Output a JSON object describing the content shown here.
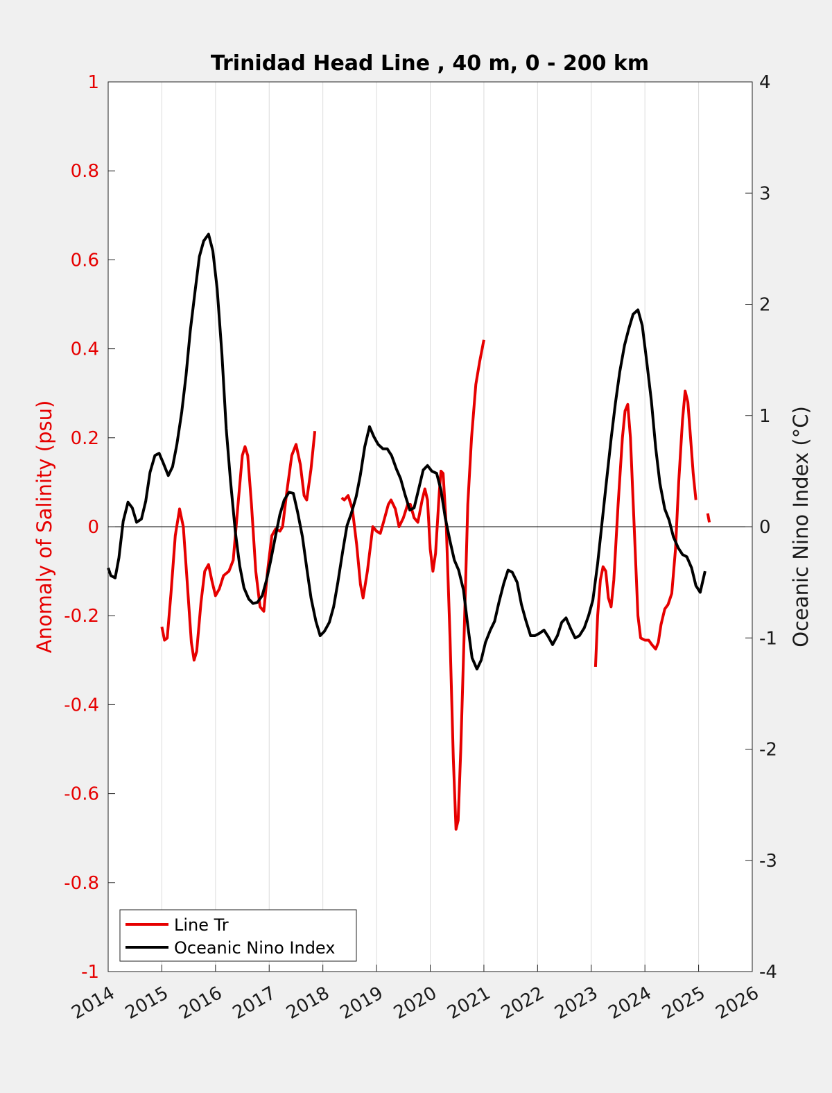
{
  "chart_data": {
    "type": "line",
    "title": "Trinidad Head Line , 40 m, 0 - 200 km",
    "xlabel": "",
    "ylabel_left": "Anomaly of Salinity (psu)",
    "ylabel_right": "Oceanic Nino Index (°C)",
    "xlim": [
      2014,
      2026
    ],
    "ylim_left": [
      -1,
      1
    ],
    "ylim_right": [
      -4,
      4
    ],
    "x_ticks": [
      2014,
      2015,
      2016,
      2017,
      2018,
      2019,
      2020,
      2021,
      2022,
      2023,
      2024,
      2025,
      2026
    ],
    "y_ticks_left": [
      1,
      0.8,
      0.6,
      0.4,
      0.2,
      0,
      -0.2,
      -0.4,
      -0.6,
      -0.8,
      -1
    ],
    "y_tick_labels_left": [
      "1",
      "0.8",
      "0.6",
      "0.4",
      "0.2",
      "0",
      "-0.2",
      "-0.4",
      "-0.6",
      "-0.8",
      "-1"
    ],
    "y_ticks_right": [
      4,
      3,
      2,
      1,
      0,
      -1,
      -2,
      -3,
      -4
    ],
    "y_tick_labels_right": [
      "4",
      "3",
      "2",
      "1",
      "0",
      "-1",
      "-2",
      "-3",
      "-4"
    ],
    "grid": "vertical",
    "zero_line": true,
    "legend_position": "bottom-left",
    "colors": {
      "salinity": "#e60000",
      "oni": "#000000",
      "left_axis": "#e60000",
      "right_axis": "#1a1a1a",
      "grid": "#dcdcdc",
      "background": "#f0f0f0",
      "plot_background": "#ffffff"
    },
    "series": [
      {
        "name": "Line Tr",
        "axis": "left",
        "color": "#e60000",
        "segments": [
          [
            [
              2015.0,
              -0.225
            ],
            [
              2015.05,
              -0.255
            ],
            [
              2015.1,
              -0.25
            ],
            [
              2015.17,
              -0.15
            ],
            [
              2015.25,
              -0.02
            ],
            [
              2015.33,
              0.04
            ],
            [
              2015.4,
              0.0
            ],
            [
              2015.47,
              -0.12
            ],
            [
              2015.55,
              -0.26
            ],
            [
              2015.6,
              -0.3
            ],
            [
              2015.65,
              -0.28
            ],
            [
              2015.73,
              -0.17
            ],
            [
              2015.8,
              -0.1
            ],
            [
              2015.87,
              -0.085
            ],
            [
              2015.93,
              -0.12
            ],
            [
              2016.0,
              -0.155
            ],
            [
              2016.07,
              -0.14
            ],
            [
              2016.15,
              -0.11
            ],
            [
              2016.25,
              -0.1
            ],
            [
              2016.33,
              -0.075
            ],
            [
              2016.42,
              0.05
            ],
            [
              2016.5,
              0.16
            ],
            [
              2016.55,
              0.18
            ],
            [
              2016.6,
              0.16
            ],
            [
              2016.67,
              0.05
            ],
            [
              2016.75,
              -0.1
            ],
            [
              2016.83,
              -0.18
            ],
            [
              2016.9,
              -0.19
            ],
            [
              2016.97,
              -0.1
            ],
            [
              2017.05,
              -0.02
            ],
            [
              2017.12,
              -0.005
            ],
            [
              2017.2,
              -0.01
            ],
            [
              2017.25,
              0.0
            ],
            [
              2017.33,
              0.08
            ],
            [
              2017.42,
              0.16
            ],
            [
              2017.5,
              0.185
            ],
            [
              2017.58,
              0.14
            ],
            [
              2017.65,
              0.07
            ],
            [
              2017.7,
              0.06
            ],
            [
              2017.78,
              0.13
            ],
            [
              2017.85,
              0.215
            ]
          ],
          [
            [
              2018.35,
              0.065
            ],
            [
              2018.4,
              0.06
            ],
            [
              2018.47,
              0.07
            ],
            [
              2018.55,
              0.04
            ],
            [
              2018.63,
              -0.04
            ],
            [
              2018.7,
              -0.13
            ],
            [
              2018.75,
              -0.16
            ],
            [
              2018.83,
              -0.1
            ],
            [
              2018.93,
              0.0
            ],
            [
              2019.0,
              -0.01
            ],
            [
              2019.07,
              -0.015
            ],
            [
              2019.13,
              0.01
            ],
            [
              2019.22,
              0.05
            ],
            [
              2019.27,
              0.06
            ],
            [
              2019.35,
              0.04
            ],
            [
              2019.42,
              0.0
            ],
            [
              2019.5,
              0.02
            ],
            [
              2019.58,
              0.05
            ],
            [
              2019.63,
              0.05
            ],
            [
              2019.7,
              0.02
            ],
            [
              2019.77,
              0.01
            ],
            [
              2019.85,
              0.06
            ],
            [
              2019.9,
              0.085
            ],
            [
              2019.95,
              0.06
            ],
            [
              2020.0,
              -0.05
            ],
            [
              2020.05,
              -0.1
            ],
            [
              2020.1,
              -0.06
            ],
            [
              2020.17,
              0.08
            ],
            [
              2020.2,
              0.125
            ],
            [
              2020.24,
              0.12
            ],
            [
              2020.3,
              0.0
            ],
            [
              2020.37,
              -0.25
            ],
            [
              2020.43,
              -0.52
            ],
            [
              2020.48,
              -0.68
            ],
            [
              2020.52,
              -0.66
            ],
            [
              2020.57,
              -0.5
            ],
            [
              2020.63,
              -0.25
            ],
            [
              2020.7,
              0.05
            ],
            [
              2020.77,
              0.2
            ],
            [
              2020.85,
              0.32
            ],
            [
              2020.92,
              0.37
            ],
            [
              2021.0,
              0.42
            ]
          ],
          [
            [
              2023.08,
              -0.315
            ],
            [
              2023.12,
              -0.2
            ],
            [
              2023.17,
              -0.12
            ],
            [
              2023.22,
              -0.09
            ],
            [
              2023.27,
              -0.1
            ],
            [
              2023.32,
              -0.16
            ],
            [
              2023.37,
              -0.18
            ],
            [
              2023.42,
              -0.12
            ],
            [
              2023.5,
              0.05
            ],
            [
              2023.58,
              0.2
            ],
            [
              2023.63,
              0.26
            ],
            [
              2023.68,
              0.275
            ],
            [
              2023.73,
              0.2
            ],
            [
              2023.8,
              0.0
            ],
            [
              2023.87,
              -0.2
            ],
            [
              2023.92,
              -0.25
            ],
            [
              2024.0,
              -0.255
            ],
            [
              2024.07,
              -0.255
            ],
            [
              2024.13,
              -0.265
            ],
            [
              2024.2,
              -0.275
            ],
            [
              2024.25,
              -0.26
            ],
            [
              2024.3,
              -0.22
            ],
            [
              2024.37,
              -0.185
            ],
            [
              2024.43,
              -0.175
            ],
            [
              2024.5,
              -0.15
            ],
            [
              2024.57,
              -0.05
            ],
            [
              2024.63,
              0.1
            ],
            [
              2024.7,
              0.24
            ],
            [
              2024.75,
              0.305
            ],
            [
              2024.8,
              0.28
            ],
            [
              2024.85,
              0.2
            ],
            [
              2024.9,
              0.12
            ],
            [
              2024.95,
              0.06
            ]
          ],
          [
            [
              2025.17,
              0.03
            ],
            [
              2025.2,
              0.01
            ]
          ]
        ]
      },
      {
        "name": "Oceanic Nino Index",
        "axis": "right",
        "color": "#000000",
        "points": [
          [
            2014.0,
            -0.37
          ],
          [
            2014.05,
            -0.44
          ],
          [
            2014.13,
            -0.46
          ],
          [
            2014.2,
            -0.28
          ],
          [
            2014.28,
            0.05
          ],
          [
            2014.37,
            0.22
          ],
          [
            2014.45,
            0.17
          ],
          [
            2014.53,
            0.04
          ],
          [
            2014.62,
            0.07
          ],
          [
            2014.7,
            0.23
          ],
          [
            2014.78,
            0.49
          ],
          [
            2014.87,
            0.64
          ],
          [
            2014.95,
            0.66
          ],
          [
            2015.03,
            0.57
          ],
          [
            2015.12,
            0.46
          ],
          [
            2015.2,
            0.54
          ],
          [
            2015.28,
            0.74
          ],
          [
            2015.37,
            1.03
          ],
          [
            2015.45,
            1.36
          ],
          [
            2015.53,
            1.76
          ],
          [
            2015.62,
            2.12
          ],
          [
            2015.7,
            2.43
          ],
          [
            2015.78,
            2.57
          ],
          [
            2015.87,
            2.63
          ],
          [
            2015.95,
            2.48
          ],
          [
            2016.03,
            2.14
          ],
          [
            2016.12,
            1.55
          ],
          [
            2016.2,
            0.88
          ],
          [
            2016.28,
            0.41
          ],
          [
            2016.37,
            -0.05
          ],
          [
            2016.45,
            -0.35
          ],
          [
            2016.53,
            -0.55
          ],
          [
            2016.62,
            -0.65
          ],
          [
            2016.7,
            -0.69
          ],
          [
            2016.78,
            -0.68
          ],
          [
            2016.87,
            -0.62
          ],
          [
            2016.95,
            -0.48
          ],
          [
            2017.03,
            -0.3
          ],
          [
            2017.12,
            -0.08
          ],
          [
            2017.2,
            0.11
          ],
          [
            2017.28,
            0.24
          ],
          [
            2017.37,
            0.31
          ],
          [
            2017.45,
            0.3
          ],
          [
            2017.53,
            0.13
          ],
          [
            2017.62,
            -0.09
          ],
          [
            2017.7,
            -0.37
          ],
          [
            2017.78,
            -0.64
          ],
          [
            2017.87,
            -0.85
          ],
          [
            2017.95,
            -0.98
          ],
          [
            2018.03,
            -0.94
          ],
          [
            2018.12,
            -0.86
          ],
          [
            2018.2,
            -0.72
          ],
          [
            2018.28,
            -0.5
          ],
          [
            2018.37,
            -0.22
          ],
          [
            2018.45,
            0.01
          ],
          [
            2018.53,
            0.12
          ],
          [
            2018.62,
            0.27
          ],
          [
            2018.7,
            0.47
          ],
          [
            2018.78,
            0.72
          ],
          [
            2018.87,
            0.9
          ],
          [
            2018.95,
            0.81
          ],
          [
            2019.03,
            0.74
          ],
          [
            2019.12,
            0.7
          ],
          [
            2019.2,
            0.7
          ],
          [
            2019.28,
            0.64
          ],
          [
            2019.37,
            0.52
          ],
          [
            2019.45,
            0.43
          ],
          [
            2019.53,
            0.29
          ],
          [
            2019.62,
            0.15
          ],
          [
            2019.7,
            0.17
          ],
          [
            2019.78,
            0.33
          ],
          [
            2019.87,
            0.51
          ],
          [
            2019.95,
            0.55
          ],
          [
            2020.03,
            0.5
          ],
          [
            2020.12,
            0.48
          ],
          [
            2020.2,
            0.33
          ],
          [
            2020.28,
            0.08
          ],
          [
            2020.37,
            -0.13
          ],
          [
            2020.45,
            -0.3
          ],
          [
            2020.53,
            -0.39
          ],
          [
            2020.62,
            -0.57
          ],
          [
            2020.7,
            -0.89
          ],
          [
            2020.78,
            -1.18
          ],
          [
            2020.87,
            -1.28
          ],
          [
            2020.95,
            -1.2
          ],
          [
            2021.03,
            -1.04
          ],
          [
            2021.12,
            -0.93
          ],
          [
            2021.2,
            -0.85
          ],
          [
            2021.28,
            -0.68
          ],
          [
            2021.37,
            -0.51
          ],
          [
            2021.45,
            -0.39
          ],
          [
            2021.53,
            -0.41
          ],
          [
            2021.62,
            -0.5
          ],
          [
            2021.7,
            -0.7
          ],
          [
            2021.78,
            -0.84
          ],
          [
            2021.87,
            -0.98
          ],
          [
            2021.95,
            -0.98
          ],
          [
            2022.03,
            -0.96
          ],
          [
            2022.12,
            -0.93
          ],
          [
            2022.2,
            -0.99
          ],
          [
            2022.28,
            -1.06
          ],
          [
            2022.37,
            -0.98
          ],
          [
            2022.45,
            -0.86
          ],
          [
            2022.53,
            -0.82
          ],
          [
            2022.62,
            -0.92
          ],
          [
            2022.7,
            -1.0
          ],
          [
            2022.78,
            -0.98
          ],
          [
            2022.87,
            -0.91
          ],
          [
            2022.95,
            -0.8
          ],
          [
            2023.03,
            -0.66
          ],
          [
            2023.12,
            -0.33
          ],
          [
            2023.2,
            0.03
          ],
          [
            2023.28,
            0.39
          ],
          [
            2023.37,
            0.79
          ],
          [
            2023.45,
            1.11
          ],
          [
            2023.53,
            1.39
          ],
          [
            2023.62,
            1.63
          ],
          [
            2023.7,
            1.78
          ],
          [
            2023.78,
            1.91
          ],
          [
            2023.87,
            1.95
          ],
          [
            2023.95,
            1.81
          ],
          [
            2024.03,
            1.5
          ],
          [
            2024.12,
            1.13
          ],
          [
            2024.2,
            0.71
          ],
          [
            2024.28,
            0.39
          ],
          [
            2024.37,
            0.16
          ],
          [
            2024.45,
            0.06
          ],
          [
            2024.53,
            -0.09
          ],
          [
            2024.62,
            -0.19
          ],
          [
            2024.7,
            -0.25
          ],
          [
            2024.78,
            -0.27
          ],
          [
            2024.87,
            -0.37
          ],
          [
            2024.95,
            -0.53
          ],
          [
            2025.03,
            -0.59
          ],
          [
            2025.12,
            -0.4
          ]
        ]
      }
    ]
  }
}
